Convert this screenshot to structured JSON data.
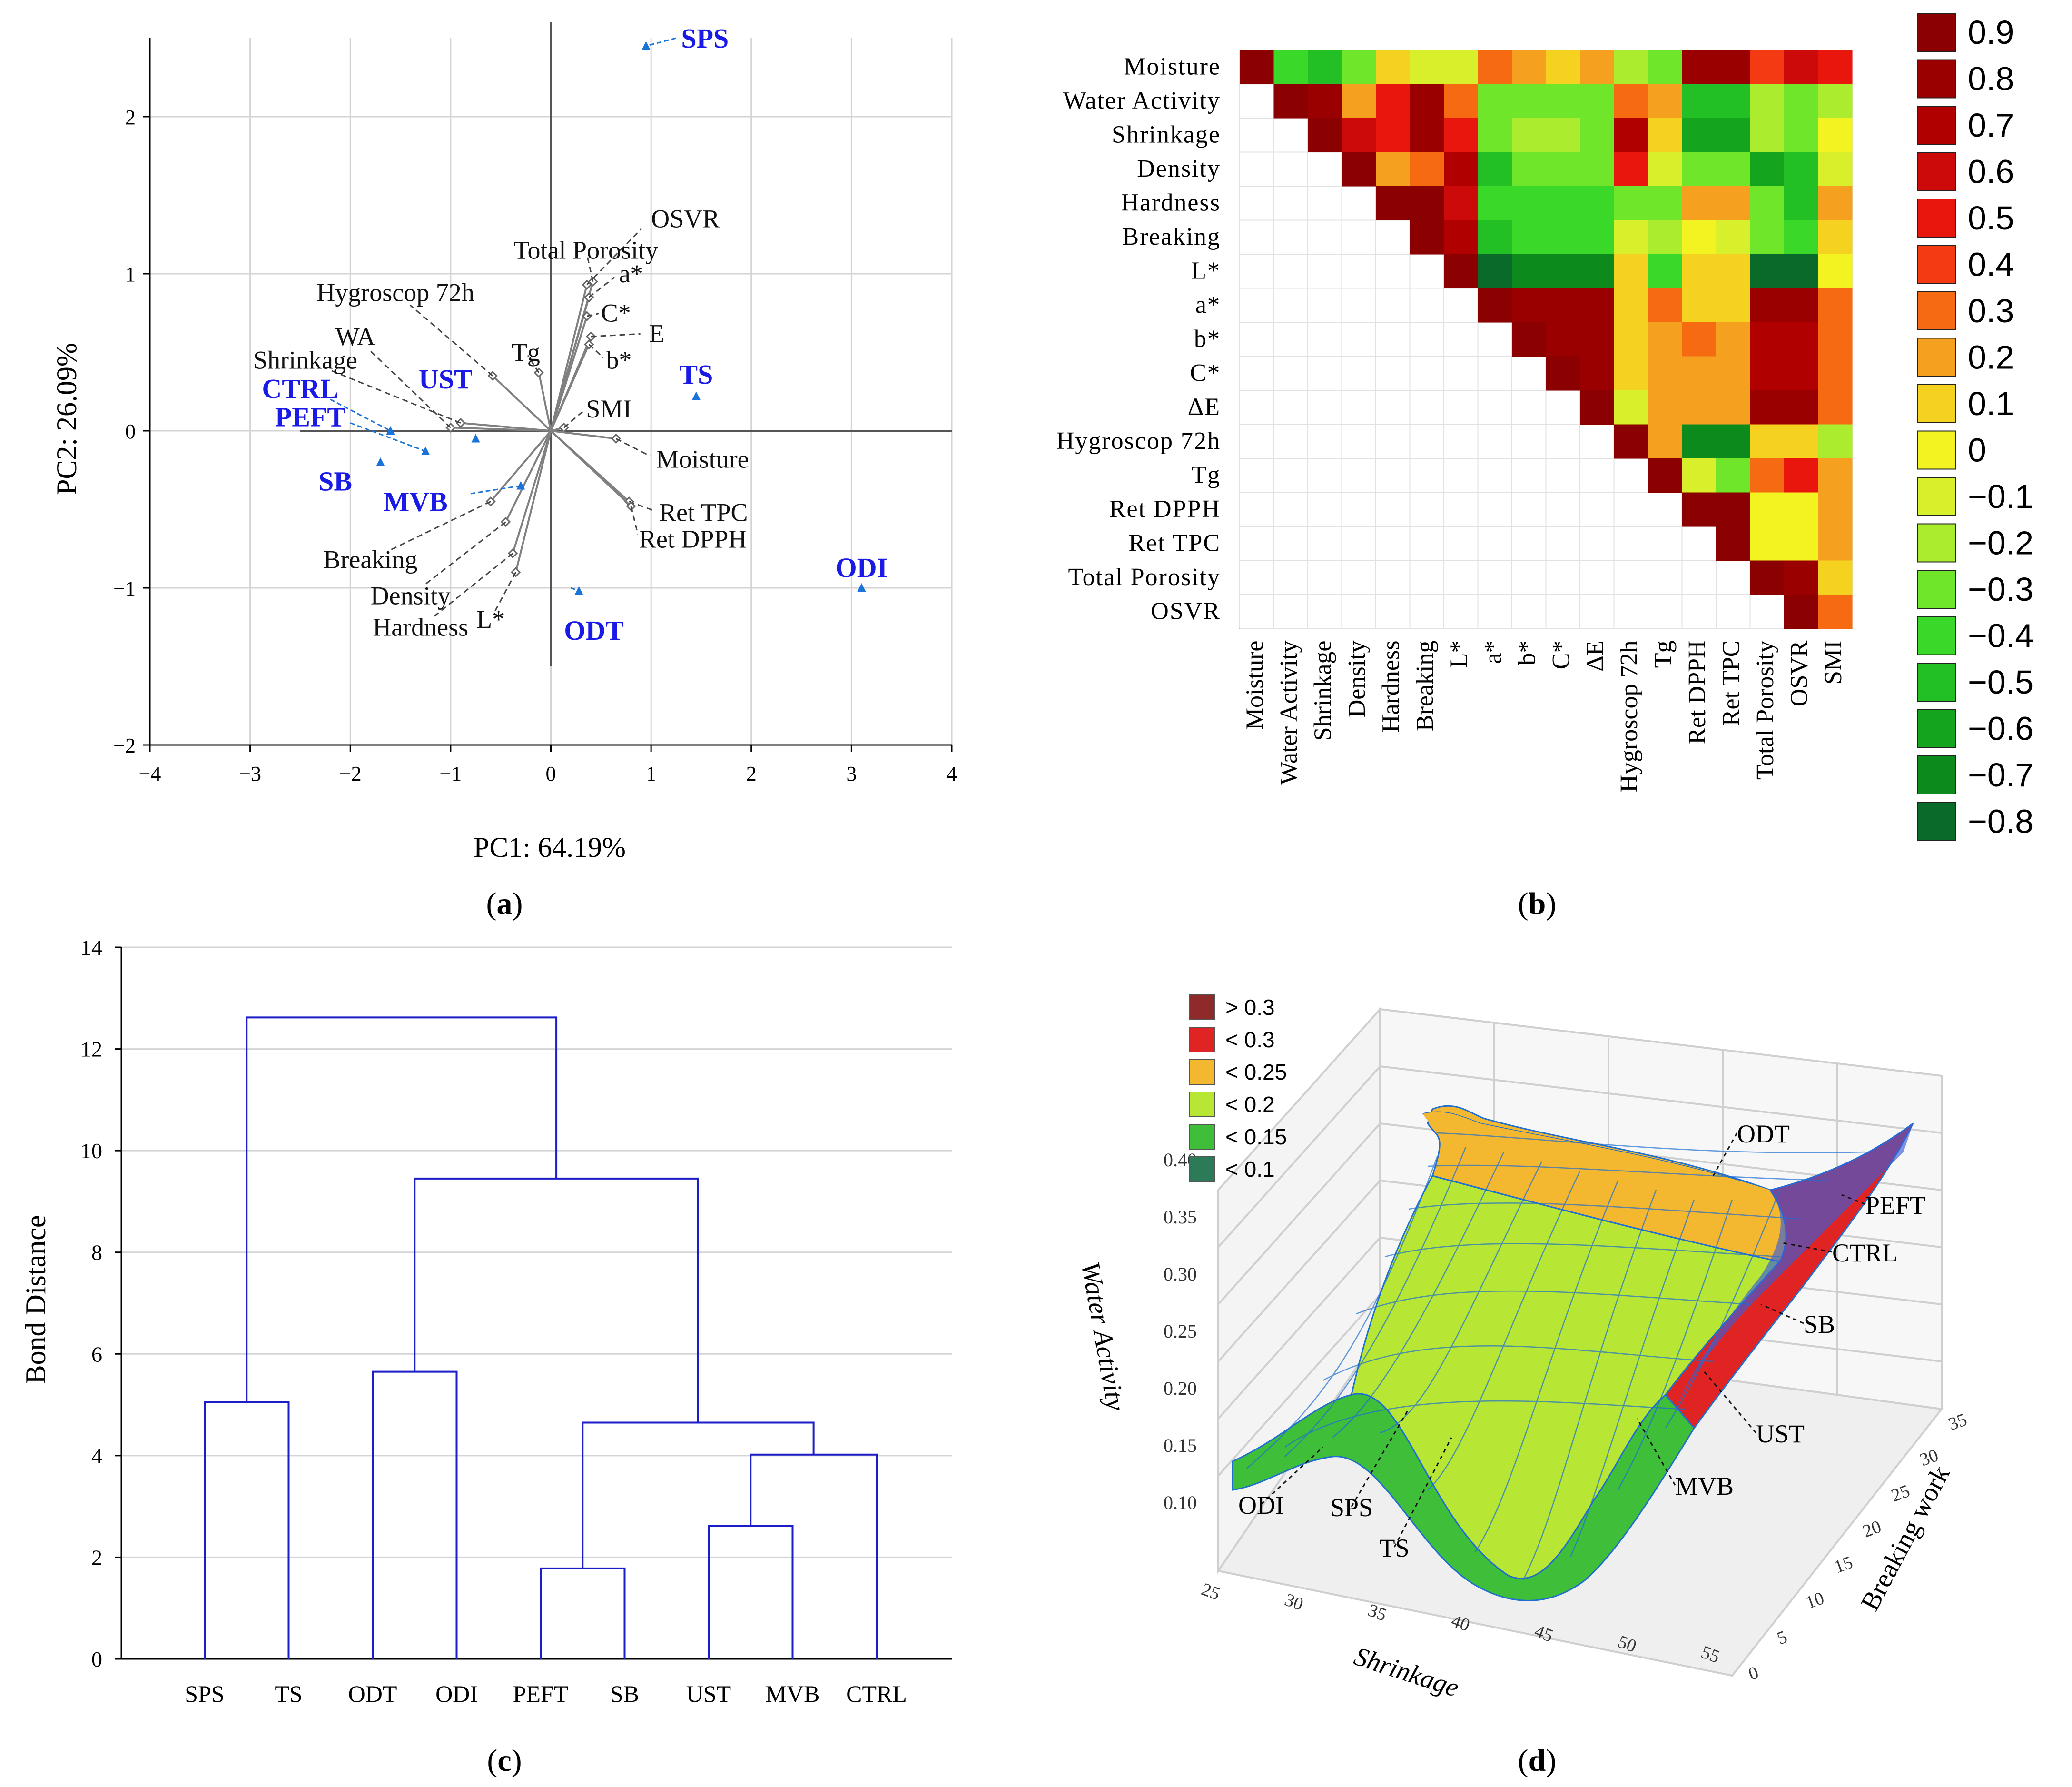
{
  "colors": {
    "sample_blue": "#1a1ae6",
    "arrow_blue": "#1a73d9",
    "dendro_blue": "#1c1cc8",
    "grid": "#d4d4d4"
  },
  "chart_data": [
    {
      "id": "a",
      "type": "scatter",
      "subtype": "pca-biplot",
      "panel_label": "a",
      "xlabel": "PC1: 64.19%",
      "ylabel": "PC2: 26.09%",
      "xlim": [
        -4,
        4
      ],
      "ylim": [
        -2,
        2.5
      ],
      "xticks": [
        "−4",
        "−3",
        "−2",
        "−1",
        "0",
        "1",
        "2",
        "3",
        "4"
      ],
      "yticks": [
        "−2",
        "−1",
        "0",
        "1",
        "2"
      ],
      "samples": [
        {
          "name": "SPS",
          "x": 0.95,
          "y": 2.45
        },
        {
          "name": "TS",
          "x": 1.45,
          "y": 0.22
        },
        {
          "name": "ODI",
          "x": 3.1,
          "y": -1.0
        },
        {
          "name": "ODT",
          "x": 0.28,
          "y": -1.02
        },
        {
          "name": "UST",
          "x": -0.75,
          "y": -0.05
        },
        {
          "name": "CTRL",
          "x": -1.6,
          "y": 0.0
        },
        {
          "name": "PEFT",
          "x": -1.25,
          "y": -0.13
        },
        {
          "name": "SB",
          "x": -1.7,
          "y": -0.2
        },
        {
          "name": "MVB",
          "x": -0.3,
          "y": -0.35
        }
      ],
      "variables": [
        {
          "name": "OSVR",
          "x": 0.36,
          "y": 0.93
        },
        {
          "name": "Total Porosity",
          "x": 0.42,
          "y": 0.95
        },
        {
          "name": "a*",
          "x": 0.38,
          "y": 0.85
        },
        {
          "name": "C*",
          "x": 0.36,
          "y": 0.73
        },
        {
          "name": "E",
          "x": 0.4,
          "y": 0.6
        },
        {
          "name": "b*",
          "x": 0.38,
          "y": 0.55
        },
        {
          "name": "Tg",
          "x": -0.12,
          "y": 0.37
        },
        {
          "name": "SMI",
          "x": 0.13,
          "y": 0.02
        },
        {
          "name": "Moisture",
          "x": 0.65,
          "y": -0.05
        },
        {
          "name": "Ret TPC",
          "x": 0.78,
          "y": -0.45
        },
        {
          "name": "Ret DPPH",
          "x": 0.8,
          "y": -0.48
        },
        {
          "name": "Hygroscop 72h",
          "x": -0.58,
          "y": 0.35
        },
        {
          "name": "WA",
          "x": -1.0,
          "y": 0.02
        },
        {
          "name": "Shrinkage",
          "x": -0.9,
          "y": 0.05
        },
        {
          "name": "Breaking",
          "x": -0.6,
          "y": -0.45
        },
        {
          "name": "Density",
          "x": -0.45,
          "y": -0.58
        },
        {
          "name": "Hardness",
          "x": -0.38,
          "y": -0.78
        },
        {
          "name": "L*",
          "x": -0.35,
          "y": -0.9
        }
      ]
    },
    {
      "id": "b",
      "type": "heatmap",
      "subtype": "correlation-upper-triangle",
      "panel_label": "b",
      "variables": [
        "Moisture",
        "Water Activity",
        "Shrinkage",
        "Density",
        "Hardness",
        "Breaking",
        "L*",
        "a*",
        "b*",
        "C*",
        "ΔE",
        "Hygroscop 72h",
        "Tg",
        "Ret DPPH",
        "Ret TPC",
        "Total Porosity",
        "OSVR",
        "SMI"
      ],
      "matrix": [
        [
          0.9,
          -0.4,
          -0.5,
          -0.3,
          0.1,
          -0.1,
          -0.1,
          0.3,
          0.2,
          0.1,
          0.2,
          -0.2,
          -0.3,
          0.8,
          0.8,
          0.4,
          0.6,
          0.5
        ],
        [
          null,
          0.9,
          0.8,
          0.2,
          0.5,
          0.8,
          0.3,
          -0.3,
          -0.3,
          -0.3,
          -0.3,
          0.3,
          0.2,
          -0.5,
          -0.5,
          -0.2,
          -0.3,
          -0.2
        ],
        [
          null,
          null,
          0.9,
          0.6,
          0.5,
          0.8,
          0.5,
          -0.3,
          -0.2,
          -0.2,
          -0.3,
          0.7,
          0.1,
          -0.6,
          -0.6,
          -0.2,
          -0.3,
          0.0
        ],
        [
          null,
          null,
          null,
          0.9,
          0.2,
          0.3,
          0.7,
          -0.5,
          -0.3,
          -0.3,
          -0.3,
          0.5,
          -0.1,
          -0.3,
          -0.3,
          -0.6,
          -0.5,
          -0.1
        ],
        [
          null,
          null,
          null,
          null,
          0.9,
          0.9,
          0.6,
          -0.4,
          -0.4,
          -0.4,
          -0.4,
          -0.3,
          -0.3,
          0.2,
          0.2,
          -0.3,
          -0.5,
          0.2
        ],
        [
          null,
          null,
          null,
          null,
          null,
          0.9,
          0.7,
          -0.5,
          -0.4,
          -0.4,
          -0.4,
          -0.1,
          -0.2,
          0.0,
          -0.1,
          -0.3,
          -0.4,
          0.1
        ],
        [
          null,
          null,
          null,
          null,
          null,
          null,
          0.9,
          -0.8,
          -0.7,
          -0.7,
          -0.7,
          0.1,
          -0.4,
          0.1,
          0.1,
          -0.8,
          -0.8,
          0.0
        ],
        [
          null,
          null,
          null,
          null,
          null,
          null,
          null,
          0.9,
          0.8,
          0.8,
          0.8,
          0.1,
          0.3,
          0.1,
          0.1,
          0.8,
          0.8,
          0.3
        ],
        [
          null,
          null,
          null,
          null,
          null,
          null,
          null,
          null,
          0.9,
          0.8,
          0.8,
          0.1,
          0.2,
          0.3,
          0.2,
          0.7,
          0.7,
          0.3
        ],
        [
          null,
          null,
          null,
          null,
          null,
          null,
          null,
          null,
          null,
          0.9,
          0.8,
          0.1,
          0.2,
          0.2,
          0.2,
          0.7,
          0.7,
          0.3
        ],
        [
          null,
          null,
          null,
          null,
          null,
          null,
          null,
          null,
          null,
          null,
          0.9,
          -0.1,
          0.2,
          0.2,
          0.2,
          0.8,
          0.8,
          0.3
        ],
        [
          null,
          null,
          null,
          null,
          null,
          null,
          null,
          null,
          null,
          null,
          null,
          0.9,
          0.2,
          -0.7,
          -0.7,
          0.1,
          0.1,
          -0.2
        ],
        [
          null,
          null,
          null,
          null,
          null,
          null,
          null,
          null,
          null,
          null,
          null,
          null,
          0.9,
          -0.1,
          -0.3,
          0.3,
          0.5,
          0.2
        ],
        [
          null,
          null,
          null,
          null,
          null,
          null,
          null,
          null,
          null,
          null,
          null,
          null,
          null,
          0.9,
          0.9,
          0.0,
          0.0,
          0.2
        ],
        [
          null,
          null,
          null,
          null,
          null,
          null,
          null,
          null,
          null,
          null,
          null,
          null,
          null,
          null,
          0.9,
          0.0,
          0.0,
          0.2
        ],
        [
          null,
          null,
          null,
          null,
          null,
          null,
          null,
          null,
          null,
          null,
          null,
          null,
          null,
          null,
          null,
          0.9,
          0.8,
          0.1
        ],
        [
          null,
          null,
          null,
          null,
          null,
          null,
          null,
          null,
          null,
          null,
          null,
          null,
          null,
          null,
          null,
          null,
          0.9,
          0.3
        ]
      ],
      "legend": {
        "labels": [
          "0.9",
          "0.8",
          "0.7",
          "0.6",
          "0.5",
          "0.4",
          "0.3",
          "0.2",
          "0.1",
          "0",
          "−0.1",
          "−0.2",
          "−0.3",
          "−0.4",
          "−0.5",
          "−0.6",
          "−0.7",
          "−0.8"
        ],
        "values": [
          0.9,
          0.8,
          0.7,
          0.6,
          0.5,
          0.4,
          0.3,
          0.2,
          0.1,
          0,
          -0.1,
          -0.2,
          -0.3,
          -0.4,
          -0.5,
          -0.6,
          -0.7,
          -0.8
        ],
        "colors": [
          "#8b0000",
          "#9a0000",
          "#b00000",
          "#cc0a0a",
          "#e8160c",
          "#f43a12",
          "#f66a12",
          "#f6a020",
          "#f5d21f",
          "#f3f321",
          "#d8f02c",
          "#acec2e",
          "#6fe62a",
          "#3ad828",
          "#22c025",
          "#14a41e",
          "#0d8a1c",
          "#0a6a2a"
        ]
      }
    },
    {
      "id": "c",
      "type": "dendrogram",
      "panel_label": "c",
      "ylabel": "Bond Distance",
      "ylim": [
        0,
        14
      ],
      "yticks": [
        "0",
        "2",
        "4",
        "6",
        "8",
        "10",
        "12",
        "14"
      ],
      "leaves": [
        "SPS",
        "TS",
        "ODT",
        "ODI",
        "PEFT",
        "SB",
        "UST",
        "MVB",
        "CTRL"
      ],
      "merges": [
        {
          "left": "leaf:PEFT",
          "right": "leaf:SB",
          "height": 1.78
        },
        {
          "left": "leaf:UST",
          "right": "leaf:MVB",
          "height": 2.62
        },
        {
          "left": "node:1",
          "right": "leaf:CTRL",
          "height": 4.02
        },
        {
          "left": "node:0",
          "right": "node:2",
          "height": 4.65
        },
        {
          "left": "leaf:SPS",
          "right": "leaf:TS",
          "height": 5.05
        },
        {
          "left": "leaf:ODT",
          "right": "leaf:ODI",
          "height": 5.65
        },
        {
          "left": "node:5",
          "right": "node:3",
          "height": 9.45
        },
        {
          "left": "node:4",
          "right": "node:6",
          "height": 12.62
        }
      ]
    },
    {
      "id": "d",
      "type": "area",
      "subtype": "3d-surface",
      "panel_label": "d",
      "xlabel": "Shrinkage",
      "ylabel": "Breaking work",
      "zlabel": "Water Activity",
      "xticks": [
        "25",
        "30",
        "35",
        "40",
        "45",
        "50",
        "55"
      ],
      "yticks": [
        "0",
        "5",
        "10",
        "15",
        "20",
        "25",
        "30",
        "35"
      ],
      "zticks": [
        "0.10",
        "0.15",
        "0.20",
        "0.25",
        "0.30",
        "0.35",
        "0.40"
      ],
      "legend": [
        {
          "label": "> 0.3",
          "color": "#8f2a2a"
        },
        {
          "label": "< 0.3",
          "color": "#e02424"
        },
        {
          "label": "< 0.25",
          "color": "#f4b730"
        },
        {
          "label": "< 0.2",
          "color": "#b7e635"
        },
        {
          "label": "< 0.15",
          "color": "#3fbe3a"
        },
        {
          "label": "< 0.1",
          "color": "#2c7a58"
        }
      ],
      "annotations": [
        "ODT",
        "PEFT",
        "CTRL",
        "SB",
        "UST",
        "MVB",
        "ODI",
        "SPS",
        "TS"
      ]
    }
  ]
}
